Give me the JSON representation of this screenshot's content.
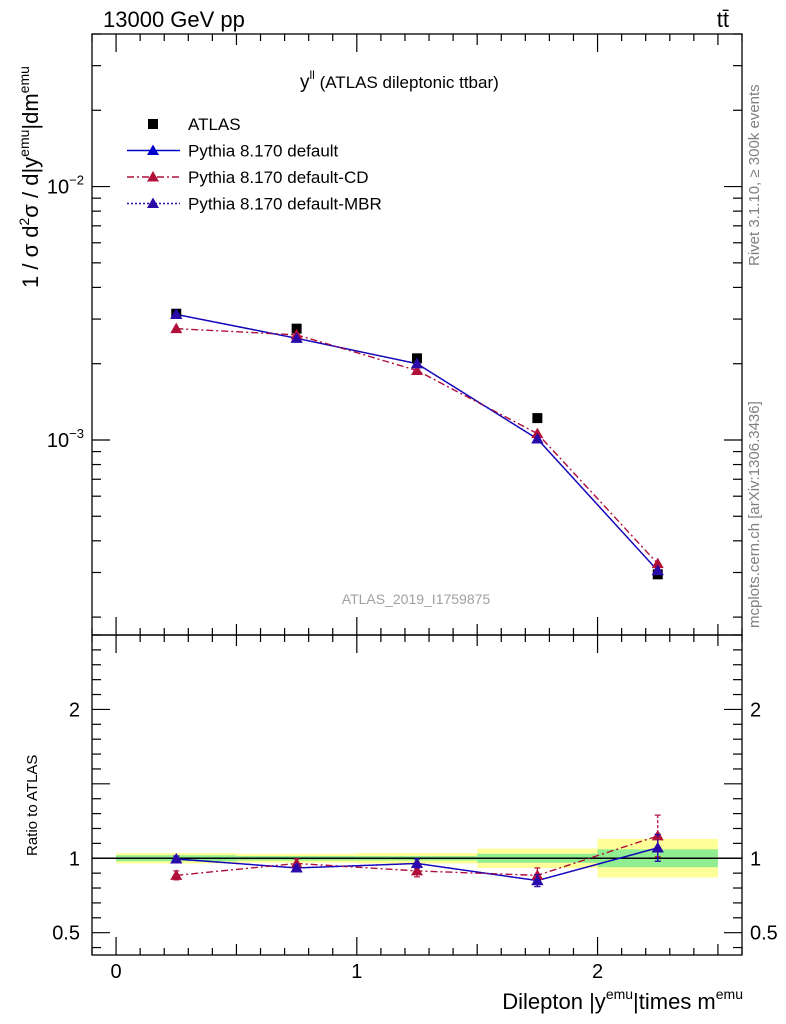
{
  "header": {
    "left": "13000 GeV pp",
    "right": "tt̄"
  },
  "plot_title": {
    "main": "y",
    "sup": "ll",
    "rest": " (ATLAS dileptonic ttbar)"
  },
  "watermark": "ATLAS_2019_I1759875",
  "side_labels": {
    "rivet": "Rivet 3.1.10, ≥ 300k events",
    "mcplots": "mcplots.cern.ch [arXiv:1306.3436]"
  },
  "ylabel_main": {
    "a": "1 / σ  d",
    "a_sup": "2",
    "b": "σ / d|y",
    "b_sup": "emu",
    "c": "|dm",
    "c_sup": "emu"
  },
  "ylabel_ratio": "Ratio to ATLAS",
  "xlabel": {
    "a": "Dilepton |y",
    "a_sup": "emu",
    "b": "|times m",
    "b_sup": "emu"
  },
  "ticks": {
    "main_y": [
      {
        "v": 0.01,
        "base": "10",
        "exp": "−2"
      },
      {
        "v": 0.001,
        "base": "10",
        "exp": "−3"
      }
    ],
    "ratio_y": [
      {
        "v": 2,
        "label": "2"
      },
      {
        "v": 1,
        "label": "1"
      },
      {
        "v": 0.5,
        "label": "0.5"
      }
    ],
    "x": [
      {
        "v": 0,
        "label": "0"
      },
      {
        "v": 1,
        "label": "1"
      },
      {
        "v": 2,
        "label": "2"
      }
    ]
  },
  "legend": [
    {
      "label": "ATLAS",
      "style": "data"
    },
    {
      "label": "Pythia 8.170 default",
      "style": "solid"
    },
    {
      "label": "Pythia 8.170 default-CD",
      "style": "dashdot"
    },
    {
      "label": "Pythia 8.170 default-MBR",
      "style": "dotted"
    }
  ],
  "colors": {
    "data": "#000000",
    "default": "#0000cc",
    "cd": "#b0103a",
    "mbr": "#2a0aa8",
    "band_inner": "#90ee90",
    "band_outer": "#ffff99",
    "side_text": "#808080",
    "watermark": "#a0a0a0"
  },
  "chart_data": {
    "type": "line",
    "x_range": [
      -0.1,
      2.6
    ],
    "main_y_log": true,
    "main_y_range": [
      0.00017,
      0.04
    ],
    "ratio_y_range": [
      0.35,
      2.5
    ],
    "bin_edges": [
      0,
      0.5,
      1,
      1.5,
      2,
      2.5
    ],
    "x": [
      0.25,
      0.75,
      1.25,
      1.75,
      2.25
    ],
    "series": [
      {
        "name": "ATLAS",
        "key": "data",
        "values": [
          0.00315,
          0.00275,
          0.0021,
          0.00122,
          0.000295
        ],
        "band_inner": [
          0.02,
          0.015,
          0.015,
          0.03,
          0.06
        ],
        "band_outer": [
          0.035,
          0.03,
          0.035,
          0.065,
          0.13
        ]
      },
      {
        "name": "Pythia 8.170 default",
        "key": "default",
        "values": [
          0.00313,
          0.00252,
          0.002,
          0.00101,
          0.000305
        ],
        "ratio": [
          0.995,
          0.935,
          0.965,
          0.85,
          1.07
        ],
        "ratio_err": [
          0.02,
          0.02,
          0.03,
          0.04,
          0.09
        ]
      },
      {
        "name": "Pythia 8.170 default-CD",
        "key": "cd",
        "values": [
          0.00275,
          0.0026,
          0.00188,
          0.00106,
          0.000325
        ],
        "ratio": [
          0.885,
          0.965,
          0.915,
          0.885,
          1.15
        ],
        "ratio_err": [
          0.03,
          0.03,
          0.04,
          0.05,
          0.14
        ]
      },
      {
        "name": "Pythia 8.170 default-MBR",
        "key": "mbr",
        "values": [
          0.00313,
          0.00252,
          0.002,
          0.00101,
          0.000305
        ],
        "ratio": [
          0.995,
          0.935,
          0.965,
          0.85,
          1.07
        ],
        "ratio_err": [
          0.02,
          0.02,
          0.03,
          0.04,
          0.09
        ]
      }
    ]
  }
}
